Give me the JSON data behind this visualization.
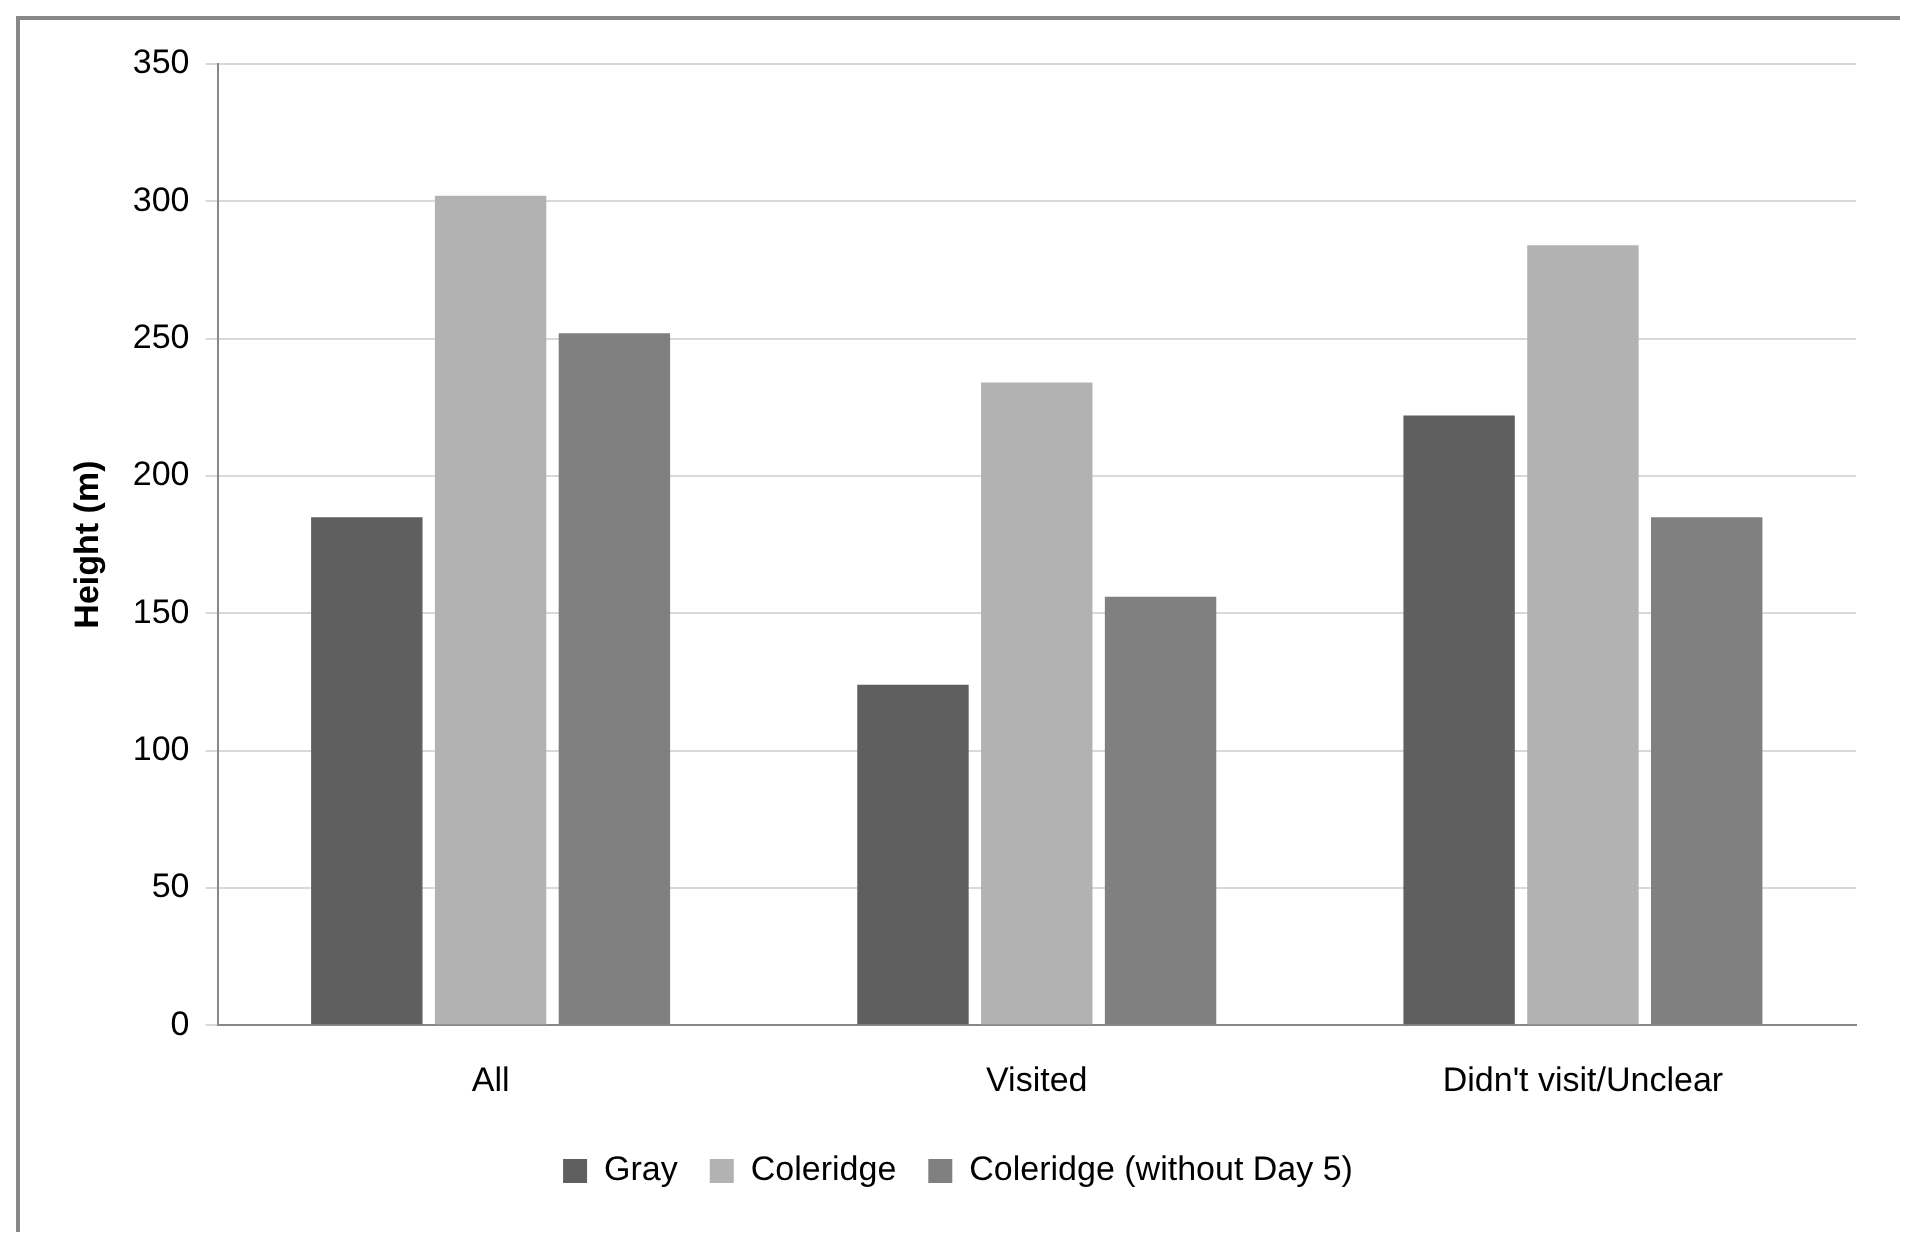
{
  "chart_data": {
    "type": "bar",
    "ylabel": "Height (m)",
    "categories": [
      "All",
      "Visited",
      "Didn't visit/Unclear"
    ],
    "series": [
      {
        "name": "Gray",
        "color": "#5f5f5f",
        "values": [
          185,
          124,
          222
        ]
      },
      {
        "name": "Coleridge",
        "color": "#b2b2b2",
        "values": [
          302,
          234,
          284
        ]
      },
      {
        "name": "Coleridge (without Day 5)",
        "color": "#808080",
        "values": [
          252,
          156,
          185
        ]
      }
    ],
    "ylim": [
      0,
      350
    ],
    "yticks": [
      0,
      50,
      100,
      150,
      200,
      250,
      300,
      350
    ],
    "grid": "y",
    "legend": "bottom"
  }
}
